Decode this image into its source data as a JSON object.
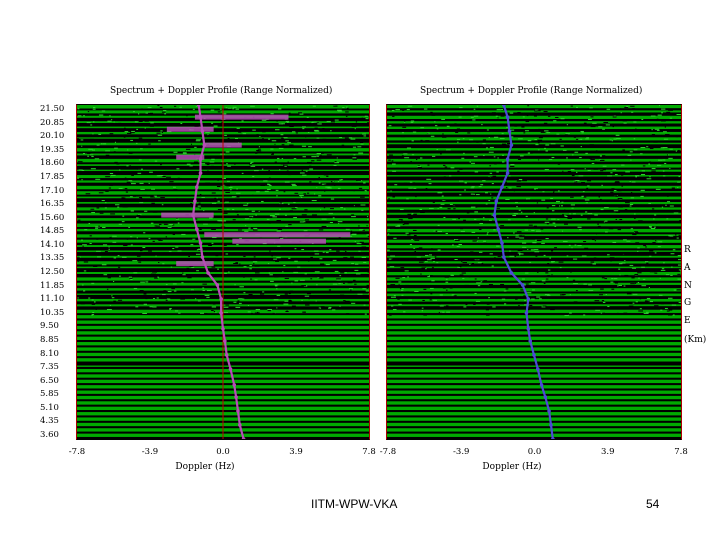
{
  "chart_data": [
    {
      "type": "line",
      "title": "Spectrum + Doppler Profile (Range Normalized)",
      "xlabel": "Doppler (Hz)",
      "ylabel": "RANGE (Km)",
      "xlim": [
        -7.8,
        7.8
      ],
      "ylim": [
        3.6,
        21.5
      ],
      "x_ticks": [
        "-7.8",
        "-3.9",
        "0.0",
        "3.9",
        "7.8"
      ],
      "y_ticks": [
        "21.50",
        "20.85",
        "20.10",
        "19.35",
        "18.60",
        "17.85",
        "17.10",
        "16.35",
        "15.60",
        "14.85",
        "14.10",
        "13.35",
        "12.50",
        "11.85",
        "11.10",
        "10.35",
        "9.50",
        "8.85",
        "8.10",
        "7.35",
        "6.50",
        "5.85",
        "5.10",
        "4.35",
        "3.60"
      ],
      "series": [
        {
          "profile_color": "#b64db6",
          "points": [
            [
              1.1,
              3.6
            ],
            [
              0.9,
              4.35
            ],
            [
              0.8,
              5.1
            ],
            [
              0.7,
              5.85
            ],
            [
              0.6,
              6.5
            ],
            [
              0.4,
              7.35
            ],
            [
              0.2,
              8.1
            ],
            [
              0.1,
              8.85
            ],
            [
              0.0,
              9.5
            ],
            [
              -0.1,
              10.35
            ],
            [
              -0.1,
              11.1
            ],
            [
              -0.3,
              11.85
            ],
            [
              -0.8,
              12.5
            ],
            [
              -1.1,
              13.35
            ],
            [
              -1.2,
              14.1
            ],
            [
              -1.4,
              14.85
            ],
            [
              -1.6,
              15.6
            ],
            [
              -1.5,
              16.35
            ],
            [
              -1.4,
              17.1
            ],
            [
              -1.2,
              17.85
            ],
            [
              -1.2,
              18.6
            ],
            [
              -1.0,
              19.35
            ],
            [
              -1.1,
              20.1
            ],
            [
              -1.2,
              20.85
            ],
            [
              -1.3,
              21.5
            ]
          ]
        }
      ],
      "smear_bands": [
        {
          "range_km": 20.85,
          "x_from": -1.5,
          "x_to": 3.5
        },
        {
          "range_km": 20.2,
          "x_from": -3.0,
          "x_to": -0.5
        },
        {
          "range_km": 19.35,
          "x_from": -1.0,
          "x_to": 1.0
        },
        {
          "range_km": 18.7,
          "x_from": -2.5,
          "x_to": -1.0
        },
        {
          "range_km": 15.6,
          "x_from": -3.3,
          "x_to": -0.5
        },
        {
          "range_km": 14.55,
          "x_from": -1.0,
          "x_to": 6.8
        },
        {
          "range_km": 14.2,
          "x_from": 0.5,
          "x_to": 5.5
        },
        {
          "range_km": 13.0,
          "x_from": -2.5,
          "x_to": -0.5
        }
      ],
      "background_color": "#00aa00",
      "noise_color": "#000000"
    },
    {
      "type": "line",
      "title": "Spectrum + Doppler Profile (Range Normalized)",
      "xlabel": "Doppler (Hz)",
      "xlim": [
        -7.8,
        7.8
      ],
      "ylim": [
        3.6,
        21.5
      ],
      "x_ticks": [
        "-7.8",
        "-3.9",
        "0.0",
        "3.9",
        "7.8"
      ],
      "series": [
        {
          "profile_color": "#4b4bd6",
          "points": [
            [
              1.0,
              3.6
            ],
            [
              0.9,
              4.35
            ],
            [
              0.8,
              5.1
            ],
            [
              0.6,
              5.85
            ],
            [
              0.4,
              6.5
            ],
            [
              0.2,
              7.35
            ],
            [
              0.0,
              8.1
            ],
            [
              -0.2,
              8.85
            ],
            [
              -0.3,
              9.5
            ],
            [
              -0.4,
              10.35
            ],
            [
              -0.3,
              11.1
            ],
            [
              -0.6,
              11.85
            ],
            [
              -1.2,
              12.5
            ],
            [
              -1.6,
              13.35
            ],
            [
              -1.7,
              14.1
            ],
            [
              -1.9,
              14.85
            ],
            [
              -2.1,
              15.6
            ],
            [
              -2.0,
              16.35
            ],
            [
              -1.7,
              17.1
            ],
            [
              -1.4,
              17.85
            ],
            [
              -1.4,
              18.6
            ],
            [
              -1.2,
              19.35
            ],
            [
              -1.3,
              20.1
            ],
            [
              -1.4,
              20.85
            ],
            [
              -1.6,
              21.5
            ]
          ]
        }
      ],
      "background_color": "#00aa00",
      "noise_color": "#000000"
    }
  ],
  "left": {
    "title": "Spectrum + Doppler Profile (Range Normalized)",
    "xlabel": "Doppler (Hz)"
  },
  "right": {
    "title": "Spectrum + Doppler Profile (Range Normalized)",
    "xlabel": "Doppler (Hz)"
  },
  "range_label": {
    "letters": [
      "R",
      "A",
      "N",
      "G",
      "E"
    ],
    "unit": "(Km)"
  },
  "footer": {
    "caption": "IITM-WPW-VKA",
    "page_number": "54"
  }
}
